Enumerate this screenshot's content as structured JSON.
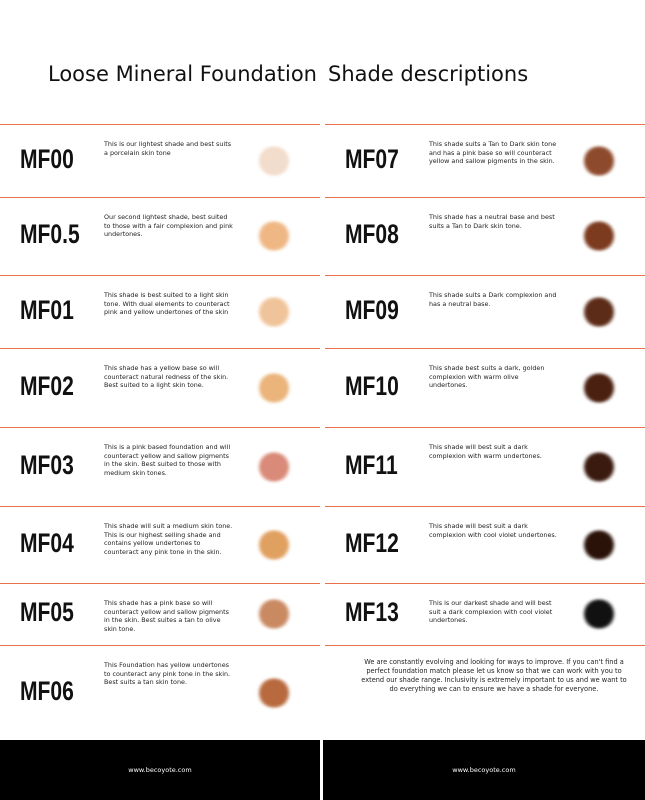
{
  "header": {
    "title_left": "Loose Mineral Foundation",
    "title_right": "Shade descriptions"
  },
  "left": {
    "shades": [
      {
        "code": "MF00",
        "description": "This is our lightest shade and best suits a porcelain skin tone",
        "color": "#f2dccb"
      },
      {
        "code": "MF0.5",
        "description": "Our second lightest shade, best suited to those with a fair complexion and pink undertones.",
        "color": "#efb784"
      },
      {
        "code": "MF01",
        "description": "This shade is best suited to a light skin tone. With dual elements to counteract pink and yellow undertones of the skin",
        "color": "#f0c49a"
      },
      {
        "code": "MF02",
        "description": "This shade has a yellow base so will counteract natural redness of the skin. Best suited to a light skin tone.",
        "color": "#eab47a"
      },
      {
        "code": "MF03",
        "description": "This is a pink based foundation and will counteract yellow and sallow pigments in the skin. Best suited to those with medium skin tones.",
        "color": "#d98a78"
      },
      {
        "code": "MF04",
        "description": "This shade will suit a medium skin tone. This is our highest selling shade and contains yellow undertones to counteract any pink tone in the skin.",
        "color": "#e0a060"
      },
      {
        "code": "MF05",
        "description": "This shade has a pink base so will counteract yellow and sallow pigments in the skin. Best suites a tan to olive skin tone.",
        "color": "#c98a62"
      },
      {
        "code": "MF06",
        "description": "This Foundation has yellow undertones to counteract any pink tone in the skin. Best suits a tan skin tone.",
        "color": "#b86a3e"
      }
    ]
  },
  "right": {
    "shades": [
      {
        "code": "MF07",
        "description": "This shade suits a Tan to Dark skin tone and has a pink base so will counteract yellow and sallow pigments in the skin.",
        "color": "#8e4a2c"
      },
      {
        "code": "MF08",
        "description": "This shade has a neutral base and best suits a Tan to Dark skin tone.",
        "color": "#7c3a1e"
      },
      {
        "code": "MF09",
        "description": "This shade suits a Dark complexion and has a neutral base.",
        "color": "#5c2c18"
      },
      {
        "code": "MF10",
        "description": "This shade best suits a dark, golden complexion with warm olive undertones.",
        "color": "#4a2010"
      },
      {
        "code": "MF11",
        "description": "This shade will best suit a dark complexion with warm undertones.",
        "color": "#3a1a0e"
      },
      {
        "code": "MF12",
        "description": "This shade will best suit a dark complexion with cool violet undertones.",
        "color": "#2a1208"
      },
      {
        "code": "MF13",
        "description": "This is our darkest shade and will best suit a dark complexion with cool violet undertones.",
        "color": "#111111"
      }
    ],
    "note": "We are constantly evolving and looking for ways to improve. If you can't find a perfect foundation match please let us know so that we can work with you to extend our shade range. Inclusivity is extremely important to us and we want to do everything we can to ensure we have a shade for everyone."
  },
  "footer": {
    "left": "www.becoyote.com",
    "right": "www.becoyote.com"
  }
}
